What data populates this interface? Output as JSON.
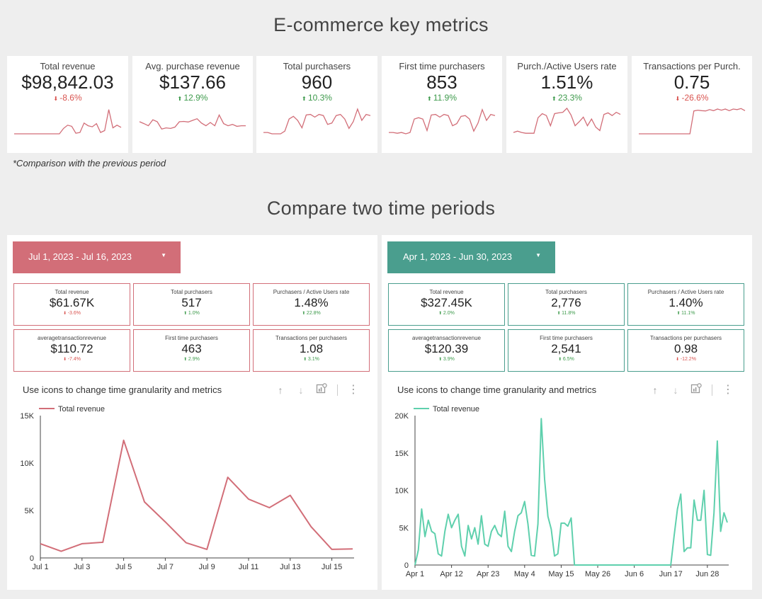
{
  "header": {
    "title": "E-commerce key metrics"
  },
  "kpis": [
    {
      "label": "Total revenue",
      "value": "$98,842.03",
      "change": "-8.6%",
      "dir": "down",
      "spark": [
        0,
        0,
        0,
        0,
        0,
        0,
        0,
        0,
        0,
        0,
        0,
        0,
        0.2,
        0.32,
        0.28,
        0.02,
        0.05,
        0.4,
        0.3,
        0.26,
        0.38,
        0.05,
        0.12,
        0.9,
        0.22,
        0.32,
        0.24
      ]
    },
    {
      "label": "Avg. purchase revenue",
      "value": "$137.66",
      "change": "12.9%",
      "dir": "up",
      "spark": [
        0.45,
        0.38,
        0.3,
        0.52,
        0.45,
        0.18,
        0.22,
        0.2,
        0.25,
        0.45,
        0.46,
        0.44,
        0.5,
        0.56,
        0.4,
        0.3,
        0.42,
        0.3,
        0.7,
        0.38,
        0.3,
        0.35,
        0.28,
        0.3,
        0.3
      ]
    },
    {
      "label": "Total purchasers",
      "value": "960",
      "change": "10.3%",
      "dir": "up",
      "spark": [
        0.05,
        0.05,
        0.0,
        0.0,
        0.0,
        0.1,
        0.55,
        0.65,
        0.5,
        0.22,
        0.7,
        0.72,
        0.62,
        0.72,
        0.68,
        0.35,
        0.4,
        0.68,
        0.72,
        0.55,
        0.2,
        0.45,
        0.92,
        0.5,
        0.72,
        0.68
      ]
    },
    {
      "label": "First time purchasers",
      "value": "853",
      "change": "11.9%",
      "dir": "up",
      "spark": [
        0.05,
        0.05,
        0.02,
        0.05,
        0.0,
        0.05,
        0.55,
        0.6,
        0.55,
        0.12,
        0.7,
        0.72,
        0.62,
        0.72,
        0.68,
        0.3,
        0.38,
        0.65,
        0.68,
        0.55,
        0.1,
        0.4,
        0.9,
        0.5,
        0.72,
        0.68
      ]
    },
    {
      "label": "Purch./Active Users rate",
      "value": "1.51%",
      "change": "23.3%",
      "dir": "up",
      "spark": [
        0.05,
        0.1,
        0.05,
        0.02,
        0.02,
        0.02,
        0.6,
        0.75,
        0.68,
        0.3,
        0.75,
        0.78,
        0.8,
        0.95,
        0.7,
        0.3,
        0.45,
        0.62,
        0.3,
        0.55,
        0.25,
        0.12,
        0.72,
        0.78,
        0.68,
        0.8,
        0.72
      ]
    },
    {
      "label": "Transactions per Purch.",
      "value": "0.75",
      "change": "-26.6%",
      "dir": "down",
      "spark": [
        0.0,
        0.0,
        0.0,
        0.0,
        0.0,
        0.0,
        0.0,
        0.0,
        0.0,
        0.0,
        0.0,
        0.0,
        0.0,
        0.0,
        0.85,
        0.88,
        0.86,
        0.85,
        0.9,
        0.86,
        0.92,
        0.88,
        0.92,
        0.86,
        0.92,
        0.9,
        0.94,
        0.86
      ]
    }
  ],
  "comparison_note": "*Comparison with the previous period",
  "section2": {
    "title": "Compare two time periods"
  },
  "periods": [
    {
      "date_range": "Jul 1, 2023 - Jul 16, 2023",
      "color": "#d26e78",
      "metrics": [
        {
          "label": "Total revenue",
          "value": "$61.67K",
          "change": "-3.6%",
          "dir": "down"
        },
        {
          "label": "Total purchasers",
          "value": "517",
          "change": "1.0%",
          "dir": "up"
        },
        {
          "label": "Purchasers / Active Users rate",
          "value": "1.48%",
          "change": "22.8%",
          "dir": "up"
        },
        {
          "label": "averagetransactionrevenue",
          "value": "$110.72",
          "change": "-7.4%",
          "dir": "down"
        },
        {
          "label": "First time purchasers",
          "value": "463",
          "change": "2.9%",
          "dir": "up"
        },
        {
          "label": "Transactions per purchasers",
          "value": "1.08",
          "change": "3.1%",
          "dir": "up"
        }
      ],
      "chart_title": "Use icons to change time granularity and metrics"
    },
    {
      "date_range": "Apr 1, 2023 - Jun 30, 2023",
      "color": "#4a9e8e",
      "metrics": [
        {
          "label": "Total revenue",
          "value": "$327.45K",
          "change": "2.0%",
          "dir": "up"
        },
        {
          "label": "Total purchasers",
          "value": "2,776",
          "change": "11.8%",
          "dir": "up"
        },
        {
          "label": "Purchasers / Active Users rate",
          "value": "1.40%",
          "change": "11.1%",
          "dir": "up"
        },
        {
          "label": "averagetransactionrevenue",
          "value": "$120.39",
          "change": "3.9%",
          "dir": "up"
        },
        {
          "label": "First time purchasers",
          "value": "2,541",
          "change": "6.5%",
          "dir": "up"
        },
        {
          "label": "Transactions per purchasers",
          "value": "0.98",
          "change": "-12.2%",
          "dir": "down"
        }
      ],
      "chart_title": "Use icons to change time granularity and metrics"
    }
  ],
  "chart_data": [
    {
      "type": "line",
      "series": [
        {
          "name": "Total revenue",
          "color": "#d26e78",
          "values": [
            1500,
            700,
            1500,
            1650,
            12400,
            5900,
            3800,
            1600,
            900,
            8500,
            6200,
            5300,
            6600,
            3300,
            900,
            950
          ]
        }
      ],
      "x_ticks": [
        "Jul 1",
        "Jul 3",
        "Jul 5",
        "Jul 7",
        "Jul 9",
        "Jul 11",
        "Jul 13",
        "Jul 15"
      ],
      "y_ticks": [
        "0",
        "5K",
        "10K",
        "15K"
      ],
      "ylim": [
        0,
        15000
      ]
    },
    {
      "type": "line",
      "series": [
        {
          "name": "Total revenue",
          "color": "#5fd0ad",
          "values": [
            0,
            2000,
            7500,
            3800,
            6000,
            4500,
            4200,
            1500,
            1200,
            4500,
            6800,
            5000,
            6000,
            6800,
            2500,
            1200,
            5300,
            3500,
            5000,
            2800,
            6600,
            2800,
            2500,
            4500,
            5300,
            4200,
            3800,
            7200,
            2500,
            1800,
            4500,
            6600,
            7000,
            8500,
            5500,
            1300,
            1200,
            5500,
            19600,
            11500,
            6500,
            4800,
            1200,
            1500,
            5600,
            5600,
            5200,
            6300,
            0,
            0,
            0,
            0,
            0,
            0,
            0,
            0,
            0,
            0,
            0,
            0,
            0,
            0,
            0,
            0,
            0,
            0,
            0,
            0,
            0,
            0,
            0,
            0,
            0,
            0,
            0,
            0,
            0,
            0,
            3900,
            7500,
            9500,
            1800,
            2300,
            2300,
            8700,
            6000,
            6000,
            10000,
            1400,
            1300,
            7000,
            16600,
            4500,
            7000,
            5700
          ]
        }
      ],
      "x_ticks": [
        "Apr 1",
        "Apr 12",
        "Apr 23",
        "May 4",
        "May 15",
        "May 26",
        "Jun 6",
        "Jun 17",
        "Jun 28"
      ],
      "y_ticks": [
        "0",
        "5K",
        "10K",
        "15K",
        "20K"
      ],
      "ylim": [
        0,
        20000
      ]
    }
  ]
}
